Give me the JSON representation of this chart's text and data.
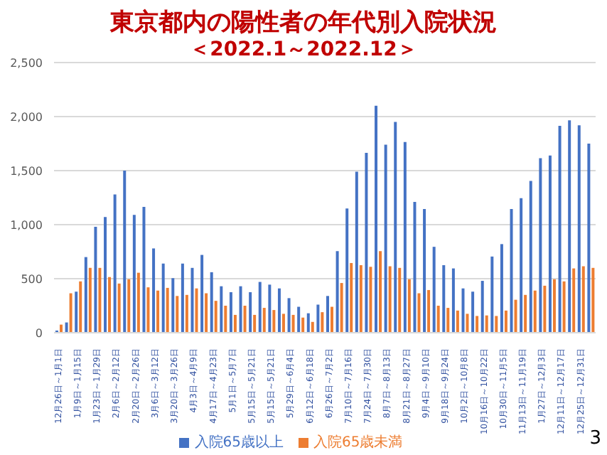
{
  "chart_data": {
    "type": "bar",
    "title": "東京都内の陽性者の年代別入院状況",
    "subtitle": "＜2022.1～2022.12＞",
    "categories": [
      "12月26日～1月1日",
      null,
      "1月9日～1月15日",
      null,
      "1月23日～1月29日",
      null,
      "2月6日～2月12日",
      null,
      "2月20日～2月26日",
      null,
      "3月6日～3月12日",
      null,
      "3月20日～3月26日",
      null,
      "4月3日～4月9日",
      null,
      "4月17日～4月23日",
      null,
      "5月1日～5月7日",
      null,
      "5月15日～5月21日",
      null,
      "5月15日～5月21日",
      null,
      "5月29日～6月4日",
      null,
      "6月12日～6月18日",
      null,
      "6月26日～7月2日",
      null,
      "7月10日～7月16日",
      null,
      "7月24日～7月30日",
      null,
      "8月7日～8月13日",
      null,
      "8月21日～8月27日",
      null,
      "9月4日～9月10日",
      null,
      "9月18日～9月24日",
      null,
      "10月2日～10月8日",
      null,
      "10月16日～10月22日",
      null,
      "10月30日～11月5日",
      null,
      "11月13日～11月19日",
      null,
      "1月27日～12月3日",
      null,
      "12月11日～12月17日",
      null,
      "12月25日～12月31日",
      null
    ],
    "series": [
      {
        "name": "入院65歳以上",
        "color": "#4472c4",
        "values": [
          20,
          95,
          380,
          700,
          980,
          1070,
          1280,
          1500,
          1090,
          1165,
          780,
          640,
          505,
          640,
          600,
          720,
          560,
          430,
          375,
          430,
          375,
          470,
          445,
          410,
          320,
          240,
          180,
          260,
          340,
          755,
          1150,
          1490,
          1665,
          2100,
          1740,
          1950,
          1765,
          1210,
          1145,
          795,
          625,
          595,
          410,
          380,
          480,
          705,
          820,
          1145,
          1245,
          1405,
          1615,
          1640,
          1915,
          1965,
          1920,
          1750
        ]
      },
      {
        "name": "入院65歳未満",
        "color": "#ed7d31",
        "values": [
          75,
          365,
          475,
          600,
          600,
          515,
          455,
          495,
          555,
          420,
          390,
          415,
          340,
          350,
          410,
          365,
          295,
          250,
          165,
          250,
          165,
          230,
          210,
          175,
          165,
          140,
          100,
          190,
          240,
          460,
          645,
          625,
          610,
          755,
          615,
          600,
          495,
          365,
          395,
          250,
          230,
          205,
          175,
          155,
          160,
          155,
          205,
          305,
          350,
          390,
          435,
          495,
          475,
          595,
          615,
          600
        ]
      }
    ],
    "ylim": [
      0,
      2500
    ],
    "yticks": [
      0,
      {
        "value": 500,
        "label": "500"
      },
      {
        "value": 1000,
        "label": "1,000"
      },
      {
        "value": 1500,
        "label": "1,500"
      },
      {
        "value": 2000,
        "label": "2,000"
      },
      {
        "value": 2500,
        "label": "2,500"
      }
    ],
    "grid": "y",
    "legend": "bottom",
    "annotations": [
      "3"
    ]
  }
}
